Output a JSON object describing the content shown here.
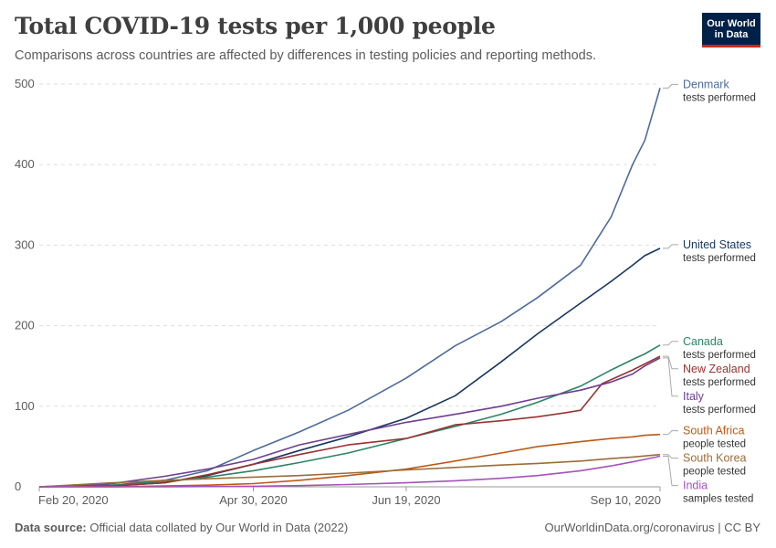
{
  "header": {
    "title": "Total COVID-19 tests per 1,000 people",
    "subtitle": "Comparisons across countries are affected by differences in testing policies and reporting methods.",
    "logo_line1": "Our World",
    "logo_line2": "in Data"
  },
  "footer": {
    "source_label": "Data source:",
    "source_text": "Official data collated by Our World in Data (2022)",
    "url_text": "OurWorldinData.org/coronavirus | CC BY"
  },
  "colors": {
    "logo_bg": "#002147",
    "logo_accent": "#ce261e",
    "grid": "#dddddd"
  },
  "chart_data": {
    "type": "line",
    "title": "Total COVID-19 tests per 1,000 people",
    "subtitle": "Comparisons across countries are affected by differences in testing policies and reporting methods.",
    "x_start": "2020-02-20",
    "x_end": "2020-09-10",
    "xticks": [
      "Feb 20, 2020",
      "Apr 30, 2020",
      "Jun 19, 2020",
      "Sep 10, 2020"
    ],
    "x_tick_dates": [
      "2020-02-20",
      "2020-04-30",
      "2020-06-19",
      "2020-09-10"
    ],
    "ylim": [
      0,
      500
    ],
    "yticks": [
      0,
      100,
      200,
      300,
      400,
      500
    ],
    "grid": "horizontal dashed",
    "legend": "right, inline labels",
    "series": [
      {
        "name": "Denmark",
        "note": "tests performed",
        "color": "#4c6a9c",
        "points": [
          [
            "2020-02-20",
            0
          ],
          [
            "2020-03-15",
            2
          ],
          [
            "2020-04-01",
            8
          ],
          [
            "2020-04-15",
            20
          ],
          [
            "2020-04-30",
            45
          ],
          [
            "2020-05-15",
            68
          ],
          [
            "2020-05-31",
            95
          ],
          [
            "2020-06-19",
            135
          ],
          [
            "2020-07-05",
            175
          ],
          [
            "2020-07-20",
            205
          ],
          [
            "2020-08-01",
            235
          ],
          [
            "2020-08-15",
            275
          ],
          [
            "2020-08-25",
            335
          ],
          [
            "2020-09-01",
            400
          ],
          [
            "2020-09-05",
            430
          ],
          [
            "2020-09-10",
            495
          ]
        ]
      },
      {
        "name": "United States",
        "note": "tests performed",
        "color": "#18375f",
        "points": [
          [
            "2020-02-20",
            0
          ],
          [
            "2020-03-15",
            1
          ],
          [
            "2020-04-01",
            5
          ],
          [
            "2020-04-15",
            14
          ],
          [
            "2020-04-30",
            28
          ],
          [
            "2020-05-15",
            45
          ],
          [
            "2020-05-31",
            62
          ],
          [
            "2020-06-19",
            85
          ],
          [
            "2020-07-05",
            113
          ],
          [
            "2020-07-20",
            155
          ],
          [
            "2020-08-01",
            190
          ],
          [
            "2020-08-15",
            228
          ],
          [
            "2020-08-25",
            255
          ],
          [
            "2020-09-01",
            275
          ],
          [
            "2020-09-05",
            287
          ],
          [
            "2020-09-10",
            296
          ]
        ]
      },
      {
        "name": "Canada",
        "note": "tests performed",
        "color": "#2c8465",
        "points": [
          [
            "2020-02-20",
            0
          ],
          [
            "2020-03-15",
            2
          ],
          [
            "2020-04-01",
            6
          ],
          [
            "2020-04-15",
            12
          ],
          [
            "2020-04-30",
            20
          ],
          [
            "2020-05-15",
            30
          ],
          [
            "2020-05-31",
            42
          ],
          [
            "2020-06-19",
            60
          ],
          [
            "2020-07-05",
            75
          ],
          [
            "2020-07-20",
            90
          ],
          [
            "2020-08-01",
            105
          ],
          [
            "2020-08-15",
            125
          ],
          [
            "2020-08-25",
            145
          ],
          [
            "2020-09-01",
            158
          ],
          [
            "2020-09-05",
            165
          ],
          [
            "2020-09-10",
            176
          ]
        ]
      },
      {
        "name": "New Zealand",
        "note": "tests performed",
        "color": "#9a3232",
        "points": [
          [
            "2020-02-20",
            0
          ],
          [
            "2020-03-15",
            1
          ],
          [
            "2020-04-01",
            5
          ],
          [
            "2020-04-15",
            15
          ],
          [
            "2020-04-30",
            28
          ],
          [
            "2020-05-15",
            40
          ],
          [
            "2020-05-31",
            52
          ],
          [
            "2020-06-19",
            60
          ],
          [
            "2020-07-05",
            77
          ],
          [
            "2020-07-20",
            82
          ],
          [
            "2020-08-01",
            87
          ],
          [
            "2020-08-10",
            92
          ],
          [
            "2020-08-15",
            95
          ],
          [
            "2020-08-22",
            128
          ],
          [
            "2020-09-01",
            145
          ],
          [
            "2020-09-10",
            162
          ]
        ]
      },
      {
        "name": "Italy",
        "note": "tests performed",
        "color": "#6d3e91",
        "points": [
          [
            "2020-02-20",
            0
          ],
          [
            "2020-03-15",
            4
          ],
          [
            "2020-04-01",
            13
          ],
          [
            "2020-04-15",
            22
          ],
          [
            "2020-04-30",
            34
          ],
          [
            "2020-05-15",
            52
          ],
          [
            "2020-05-31",
            65
          ],
          [
            "2020-06-19",
            80
          ],
          [
            "2020-07-05",
            90
          ],
          [
            "2020-07-20",
            100
          ],
          [
            "2020-08-01",
            110
          ],
          [
            "2020-08-15",
            120
          ],
          [
            "2020-08-25",
            130
          ],
          [
            "2020-09-01",
            140
          ],
          [
            "2020-09-05",
            150
          ],
          [
            "2020-09-10",
            160
          ]
        ]
      },
      {
        "name": "South Africa",
        "note": "people tested",
        "color": "#be5915",
        "points": [
          [
            "2020-02-20",
            0
          ],
          [
            "2020-03-15",
            0
          ],
          [
            "2020-04-01",
            1
          ],
          [
            "2020-04-15",
            2
          ],
          [
            "2020-04-30",
            4
          ],
          [
            "2020-05-15",
            8
          ],
          [
            "2020-05-31",
            14
          ],
          [
            "2020-06-19",
            22
          ],
          [
            "2020-07-05",
            32
          ],
          [
            "2020-07-20",
            42
          ],
          [
            "2020-08-01",
            50
          ],
          [
            "2020-08-15",
            56
          ],
          [
            "2020-08-25",
            60
          ],
          [
            "2020-09-01",
            62
          ],
          [
            "2020-09-05",
            64
          ],
          [
            "2020-09-10",
            65
          ]
        ]
      },
      {
        "name": "South Korea",
        "note": "people tested",
        "color": "#996d39",
        "points": [
          [
            "2020-02-20",
            0
          ],
          [
            "2020-03-01",
            2
          ],
          [
            "2020-03-15",
            5
          ],
          [
            "2020-04-01",
            8
          ],
          [
            "2020-04-15",
            10
          ],
          [
            "2020-04-30",
            12
          ],
          [
            "2020-05-15",
            14
          ],
          [
            "2020-05-31",
            17
          ],
          [
            "2020-06-19",
            21
          ],
          [
            "2020-07-05",
            24
          ],
          [
            "2020-07-20",
            27
          ],
          [
            "2020-08-01",
            29
          ],
          [
            "2020-08-15",
            32
          ],
          [
            "2020-08-25",
            35
          ],
          [
            "2020-09-01",
            37
          ],
          [
            "2020-09-10",
            40
          ]
        ]
      },
      {
        "name": "India",
        "note": "samples tested",
        "color": "#a652ba",
        "points": [
          [
            "2020-02-20",
            0
          ],
          [
            "2020-03-15",
            0
          ],
          [
            "2020-04-01",
            0
          ],
          [
            "2020-04-15",
            0.3
          ],
          [
            "2020-04-30",
            0.7
          ],
          [
            "2020-05-15",
            1.5
          ],
          [
            "2020-05-31",
            2.8
          ],
          [
            "2020-06-19",
            5
          ],
          [
            "2020-07-05",
            7.5
          ],
          [
            "2020-07-20",
            10.5
          ],
          [
            "2020-08-01",
            14
          ],
          [
            "2020-08-15",
            20
          ],
          [
            "2020-08-25",
            26
          ],
          [
            "2020-09-01",
            31
          ],
          [
            "2020-09-05",
            34
          ],
          [
            "2020-09-10",
            38
          ]
        ]
      }
    ]
  }
}
